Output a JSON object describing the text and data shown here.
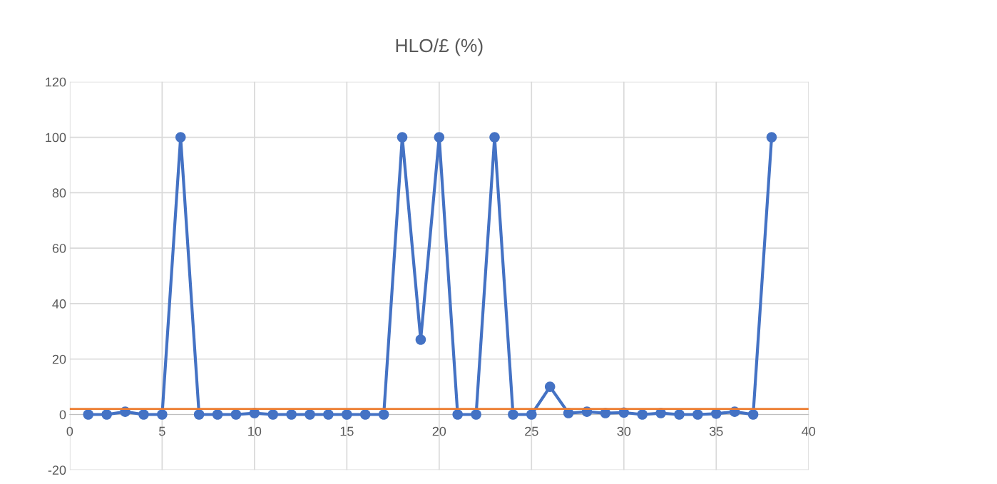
{
  "chart_data": {
    "type": "line",
    "title": "HLO/£ (%)",
    "x": [
      1,
      2,
      3,
      4,
      5,
      6,
      7,
      8,
      9,
      10,
      11,
      12,
      13,
      14,
      15,
      16,
      17,
      18,
      19,
      20,
      21,
      22,
      23,
      24,
      25,
      26,
      27,
      28,
      29,
      30,
      31,
      32,
      33,
      34,
      35,
      36,
      37,
      38
    ],
    "series": [
      {
        "color": "#4472c4",
        "values": [
          0,
          0,
          1,
          0,
          0,
          100,
          0,
          0,
          0,
          0.5,
          0,
          0,
          0,
          0,
          0,
          0,
          0,
          100,
          27,
          100,
          0,
          0,
          100,
          0,
          0,
          10,
          0.5,
          1,
          0.5,
          0.7,
          0,
          0.5,
          0,
          0,
          0.3,
          1,
          0,
          100
        ]
      }
    ],
    "xlim": [
      0,
      40
    ],
    "xticks": [
      0,
      5,
      10,
      15,
      20,
      25,
      30,
      35,
      40
    ],
    "ylim": [
      -20,
      120
    ],
    "yticks": [
      -20,
      0,
      20,
      40,
      60,
      80,
      100,
      120
    ],
    "grid": true,
    "marker": "circle",
    "line_style": "solid",
    "legend": false,
    "ref_lines": [
      {
        "axis": "y",
        "value": 2,
        "color": "#ed7d31",
        "line_style": "solid"
      }
    ]
  }
}
